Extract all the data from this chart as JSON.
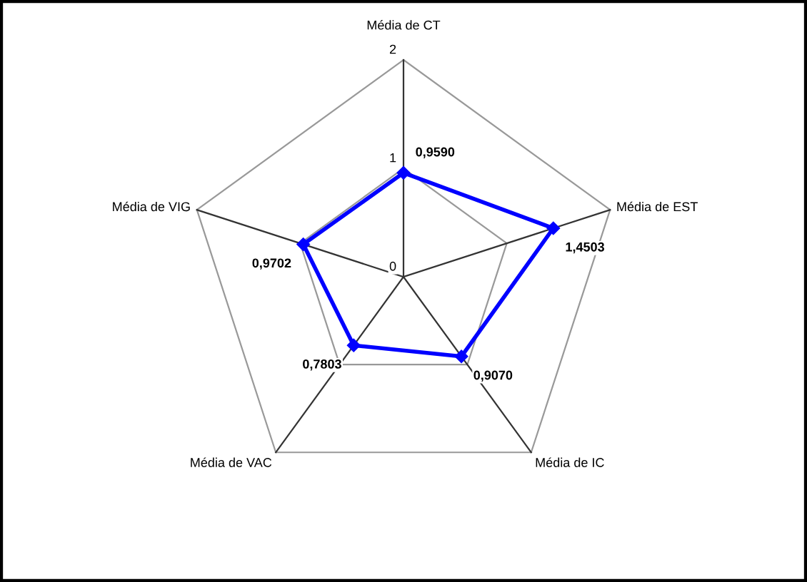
{
  "chart_data": {
    "type": "radar",
    "categories": [
      "Média de CT",
      "Média de EST",
      "Média de IC",
      "Média de VAC",
      "Média de VIG"
    ],
    "series": [
      {
        "color": "#0000ff",
        "values": [
          0.959,
          1.4503,
          0.907,
          0.7803,
          0.9702
        ],
        "value_labels": [
          "0,9590",
          "1,4503",
          "0,9070",
          "0,7803",
          "0,9702"
        ]
      }
    ],
    "ylim": [
      0,
      2
    ],
    "yticks": [
      0,
      1,
      2
    ],
    "grid": true,
    "marker": "diamond",
    "line_style": "solid"
  }
}
